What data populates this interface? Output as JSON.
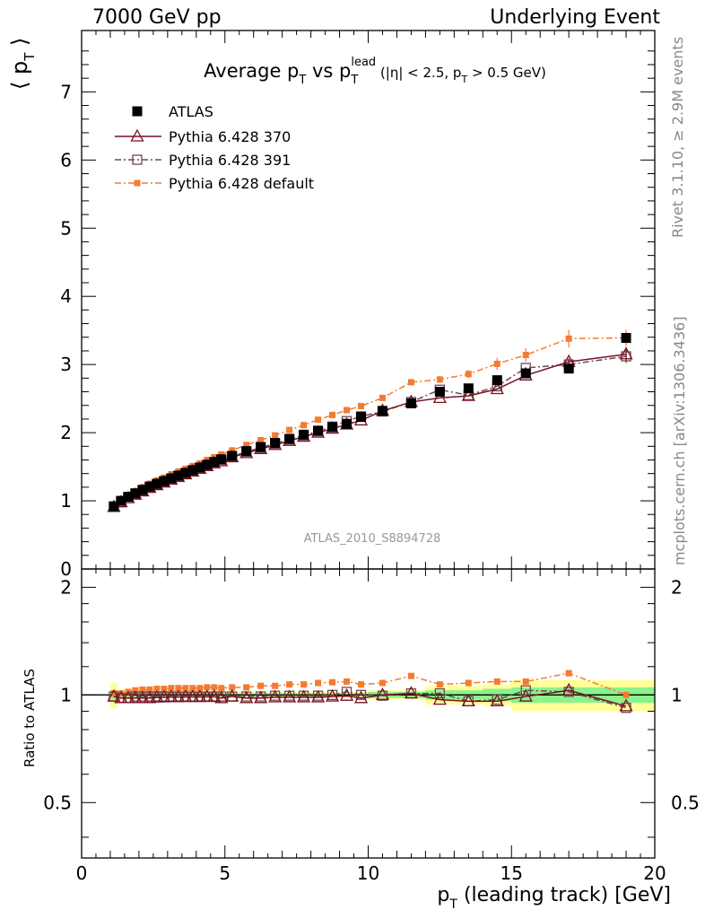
{
  "header": {
    "left": "7000 GeV pp",
    "right": "Underlying Event"
  },
  "side_labels": {
    "rivet": "Rivet 3.1.10, ≥ 2.9M events",
    "mcplots": "mcplots.cern.ch [arXiv:1306.3436]"
  },
  "chart_data": [
    {
      "type": "scatter",
      "panel": "main",
      "title": "Average p_T vs p_T^lead (|η| < 2.5, p_T > 0.5 GeV)",
      "ylabel": "⟨ p_T ⟩",
      "watermark": "ATLAS_2010_S8894728",
      "xlim": [
        0,
        20
      ],
      "ylim": [
        0,
        7.9
      ],
      "yticks": [
        0,
        1,
        2,
        3,
        4,
        5,
        6,
        7
      ],
      "grid": false,
      "legend_position": "top-left",
      "x": [
        1.125,
        1.375,
        1.625,
        1.875,
        2.125,
        2.375,
        2.625,
        2.875,
        3.125,
        3.375,
        3.625,
        3.875,
        4.125,
        4.375,
        4.625,
        4.875,
        5.25,
        5.75,
        6.25,
        6.75,
        7.25,
        7.75,
        8.25,
        8.75,
        9.25,
        9.75,
        10.5,
        11.5,
        12.5,
        13.5,
        14.5,
        15.5,
        17.0,
        19.0
      ],
      "series": [
        {
          "name": "ATLAS",
          "color": "#000000",
          "marker": "filled-square",
          "values": [
            0.92,
            1.0,
            1.06,
            1.11,
            1.16,
            1.21,
            1.25,
            1.29,
            1.33,
            1.37,
            1.41,
            1.45,
            1.49,
            1.53,
            1.57,
            1.61,
            1.66,
            1.73,
            1.79,
            1.85,
            1.91,
            1.97,
            2.03,
            2.08,
            2.13,
            2.23,
            2.32,
            2.43,
            2.6,
            2.65,
            2.77,
            2.87,
            2.94,
            3.39
          ]
        },
        {
          "name": "Pythia 6.428 370",
          "color": "#7a1020",
          "marker": "open-triangle",
          "line": "solid",
          "values": [
            0.91,
            0.98,
            1.04,
            1.09,
            1.14,
            1.19,
            1.23,
            1.27,
            1.31,
            1.35,
            1.39,
            1.43,
            1.47,
            1.51,
            1.55,
            1.58,
            1.64,
            1.7,
            1.76,
            1.82,
            1.88,
            1.94,
            2.0,
            2.06,
            2.12,
            2.18,
            2.32,
            2.45,
            2.51,
            2.54,
            2.64,
            2.84,
            3.04,
            3.15
          ]
        },
        {
          "name": "Pythia 6.428 391",
          "color": "#6b4a55",
          "marker": "open-square",
          "line": "dash-dot",
          "values": [
            0.91,
            0.98,
            1.04,
            1.1,
            1.15,
            1.2,
            1.24,
            1.28,
            1.32,
            1.36,
            1.4,
            1.44,
            1.48,
            1.52,
            1.56,
            1.6,
            1.65,
            1.72,
            1.78,
            1.84,
            1.9,
            1.96,
            2.02,
            2.09,
            2.17,
            2.24,
            2.31,
            2.45,
            2.63,
            2.55,
            2.68,
            2.95,
            3.0,
            3.12
          ]
        },
        {
          "name": "Pythia 6.428 default",
          "color": "#f47b30",
          "marker": "filled-small-square",
          "line": "dash-dot",
          "values": [
            0.93,
            1.01,
            1.08,
            1.14,
            1.2,
            1.25,
            1.3,
            1.34,
            1.39,
            1.43,
            1.47,
            1.51,
            1.55,
            1.6,
            1.64,
            1.68,
            1.74,
            1.82,
            1.89,
            1.96,
            2.04,
            2.11,
            2.19,
            2.26,
            2.33,
            2.39,
            2.51,
            2.74,
            2.78,
            2.86,
            3.01,
            3.14,
            3.38,
            3.39
          ]
        }
      ],
      "errors": {
        "Pythia 6.428 default": [
          0,
          0,
          0,
          0,
          0,
          0,
          0,
          0,
          0,
          0,
          0,
          0,
          0,
          0,
          0,
          0,
          0,
          0,
          0,
          0,
          0,
          0,
          0,
          0,
          0,
          0,
          0.03,
          0.04,
          0.05,
          0.06,
          0.09,
          0.1,
          0.13,
          0.12
        ],
        "Pythia 6.428 391": [
          0,
          0,
          0,
          0,
          0,
          0,
          0,
          0,
          0,
          0,
          0,
          0,
          0,
          0,
          0,
          0,
          0,
          0,
          0,
          0,
          0,
          0,
          0,
          0,
          0,
          0,
          0,
          0,
          0,
          0,
          0,
          0,
          0.05,
          0.1
        ],
        "Pythia 6.428 370": [
          0,
          0,
          0,
          0,
          0,
          0,
          0,
          0,
          0,
          0,
          0,
          0,
          0,
          0,
          0,
          0,
          0,
          0,
          0,
          0,
          0,
          0,
          0,
          0,
          0,
          0,
          0,
          0,
          0,
          0,
          0,
          0,
          0.05,
          0.1
        ]
      }
    },
    {
      "type": "scatter",
      "panel": "ratio",
      "ylabel": "Ratio to ATLAS",
      "xlabel": "p_T (leading track) [GeV]",
      "xlim": [
        0,
        20
      ],
      "ylim": [
        0.35,
        2.25
      ],
      "yticks": [
        0.5,
        1,
        2
      ],
      "ytick_labels": [
        "0.5",
        "1",
        "2"
      ],
      "xticks": [
        0,
        5,
        10,
        15,
        20
      ],
      "reference": 1,
      "uncertainty_bands": {
        "x": [
          1.0,
          1.25,
          1.5,
          1.75,
          2.0,
          2.25,
          2.5,
          2.75,
          3.0,
          3.25,
          3.5,
          3.75,
          4.0,
          4.25,
          4.5,
          4.75,
          5.0,
          5.5,
          6.0,
          6.5,
          7.0,
          7.5,
          8.0,
          8.5,
          9.0,
          9.5,
          10.0,
          11.0,
          12.0,
          13.0,
          14.0,
          15.0,
          16.0,
          18.0,
          20.0
        ],
        "stat": [
          0.03,
          0.02,
          0.015,
          0.012,
          0.01,
          0.01,
          0.01,
          0.01,
          0.01,
          0.01,
          0.01,
          0.01,
          0.01,
          0.01,
          0.01,
          0.01,
          0.01,
          0.01,
          0.01,
          0.01,
          0.01,
          0.01,
          0.01,
          0.01,
          0.01,
          0.01,
          0.02,
          0.02,
          0.03,
          0.03,
          0.04,
          0.05,
          0.05,
          0.05
        ],
        "total": [
          0.08,
          0.03,
          0.025,
          0.02,
          0.02,
          0.02,
          0.02,
          0.02,
          0.02,
          0.02,
          0.02,
          0.02,
          0.02,
          0.02,
          0.02,
          0.02,
          0.02,
          0.02,
          0.02,
          0.02,
          0.02,
          0.02,
          0.02,
          0.02,
          0.02,
          0.02,
          0.03,
          0.03,
          0.06,
          0.06,
          0.07,
          0.1,
          0.1,
          0.1
        ],
        "stat_color": "#8cf28c",
        "total_color": "#ffff9a"
      },
      "series": [
        {
          "name": "Pythia 6.428 370",
          "color": "#7a1020",
          "marker": "open-triangle",
          "line": "solid",
          "values": [
            0.99,
            0.98,
            0.98,
            0.98,
            0.98,
            0.98,
            0.984,
            0.985,
            0.986,
            0.986,
            0.987,
            0.987,
            0.987,
            0.988,
            0.988,
            0.98,
            0.99,
            0.98,
            0.98,
            0.985,
            0.985,
            0.985,
            0.985,
            0.99,
            0.995,
            0.98,
            1.0,
            1.01,
            0.97,
            0.96,
            0.96,
            0.99,
            1.03,
            0.93
          ]
        },
        {
          "name": "Pythia 6.428 391",
          "color": "#6b4a55",
          "marker": "open-square",
          "line": "dash-dot",
          "values": [
            0.99,
            0.98,
            0.98,
            0.99,
            0.99,
            0.99,
            0.99,
            0.99,
            0.99,
            0.99,
            0.99,
            0.99,
            0.99,
            0.99,
            0.99,
            0.99,
            0.99,
            0.99,
            0.99,
            0.995,
            0.995,
            0.995,
            0.995,
            1.0,
            1.02,
            1.0,
            0.995,
            1.01,
            1.01,
            0.96,
            0.97,
            1.03,
            1.02,
            0.92
          ]
        },
        {
          "name": "Pythia 6.428 default",
          "color": "#f47b30",
          "marker": "filled-small-square",
          "line": "dash-dot",
          "values": [
            1.01,
            1.01,
            1.02,
            1.03,
            1.035,
            1.035,
            1.04,
            1.04,
            1.045,
            1.045,
            1.045,
            1.045,
            1.045,
            1.05,
            1.05,
            1.045,
            1.05,
            1.05,
            1.06,
            1.06,
            1.07,
            1.07,
            1.08,
            1.085,
            1.09,
            1.07,
            1.08,
            1.13,
            1.07,
            1.08,
            1.09,
            1.09,
            1.15,
            1.0
          ]
        }
      ]
    }
  ]
}
